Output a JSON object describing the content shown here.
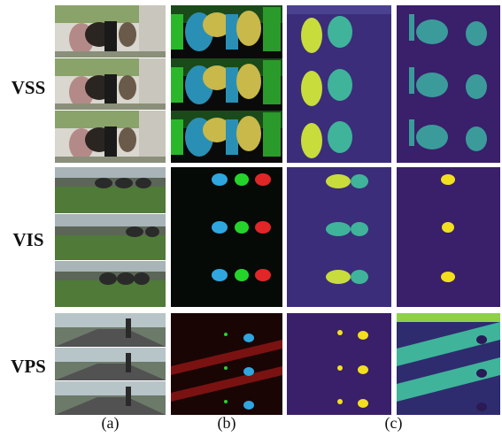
{
  "rows": [
    {
      "label": "VSS"
    },
    {
      "label": "VIS"
    },
    {
      "label": "VPS"
    }
  ],
  "columns": [
    {
      "label": "(a)"
    },
    {
      "label": "(b)"
    },
    {
      "label": "(c)"
    }
  ]
}
